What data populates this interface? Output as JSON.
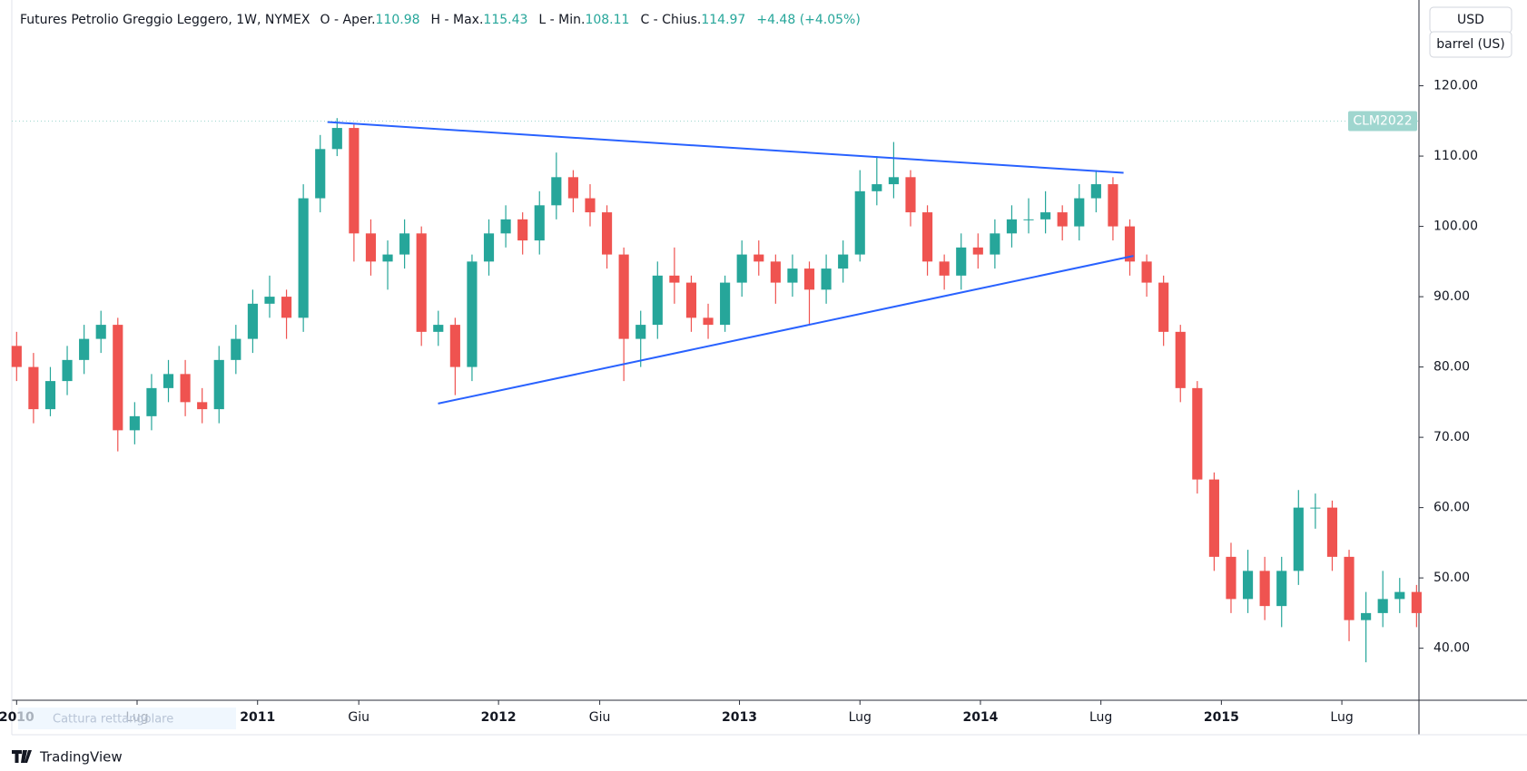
{
  "header": {
    "symbol": "Futures Petrolio Greggio Leggero, 1W, NYMEX",
    "open_label": "O - Aper.",
    "open": "110.98",
    "high_label": "H - Max.",
    "high": "115.43",
    "low_label": "L - Min.",
    "low": "108.11",
    "close_label": "C - Chius.",
    "close": "114.97",
    "change": "+4.48 (+4.05%)"
  },
  "currency": "USD",
  "unit": "barrel (US)",
  "overlay_hint": "Cattura rettangolare",
  "brand": "TradingView",
  "chart_data": {
    "type": "candlestick",
    "up_color": "#26a69a",
    "down_color": "#ef5350",
    "x": [
      2010.0,
      2010.07,
      2010.14,
      2010.21,
      2010.28,
      2010.35,
      2010.42,
      2010.49,
      2010.56,
      2010.63,
      2010.7,
      2010.77,
      2010.84,
      2010.91,
      2010.98,
      2011.05,
      2011.12,
      2011.19,
      2011.26,
      2011.33,
      2011.4,
      2011.47,
      2011.54,
      2011.61,
      2011.68,
      2011.75,
      2011.82,
      2011.89,
      2011.96,
      2012.03,
      2012.1,
      2012.17,
      2012.24,
      2012.31,
      2012.38,
      2012.45,
      2012.52,
      2012.59,
      2012.66,
      2012.73,
      2012.8,
      2012.87,
      2012.94,
      2013.01,
      2013.08,
      2013.15,
      2013.22,
      2013.29,
      2013.36,
      2013.43,
      2013.5,
      2013.57,
      2013.64,
      2013.71,
      2013.78,
      2013.85,
      2013.92,
      2013.99,
      2014.06,
      2014.13,
      2014.2,
      2014.27,
      2014.34,
      2014.41,
      2014.48,
      2014.55,
      2014.62,
      2014.69,
      2014.76,
      2014.83,
      2014.9,
      2014.97,
      2015.04,
      2015.11,
      2015.18,
      2015.25,
      2015.32,
      2015.39,
      2015.46,
      2015.53,
      2015.6,
      2015.67,
      2015.74,
      2015.81
    ],
    "open": [
      83,
      80,
      74,
      78,
      81,
      84,
      86,
      71,
      73,
      77,
      79,
      75,
      74,
      81,
      84,
      89,
      90,
      87,
      104,
      111,
      114,
      99,
      95,
      96,
      99,
      85,
      86,
      80,
      95,
      99,
      101,
      98,
      103,
      107,
      104,
      102,
      96,
      84,
      86,
      93,
      92,
      87,
      86,
      92,
      96,
      95,
      92,
      94,
      91,
      94,
      96,
      105,
      106,
      107,
      102,
      95,
      93,
      97,
      96,
      99,
      101,
      101,
      102,
      100,
      104,
      106,
      100,
      95,
      92,
      85,
      77,
      64,
      53,
      47,
      51,
      46,
      51,
      60,
      60,
      53,
      44,
      45,
      47,
      48
    ],
    "high": [
      85,
      82,
      80,
      83,
      86,
      88,
      87,
      75,
      79,
      81,
      81,
      77,
      83,
      86,
      91,
      93,
      91,
      106,
      113,
      115.4,
      114.5,
      101,
      98,
      101,
      100,
      88,
      87,
      96,
      101,
      103,
      102,
      105,
      110.5,
      108,
      106,
      103,
      97,
      88,
      95,
      97,
      93,
      89,
      93,
      98,
      98,
      96,
      96,
      95,
      96,
      98,
      108,
      110,
      112,
      108,
      103,
      96,
      99,
      99,
      101,
      103,
      104,
      105,
      103,
      106,
      108,
      107,
      101,
      96,
      93,
      86,
      78,
      65,
      55,
      54,
      53,
      53,
      62.5,
      62,
      61,
      54,
      48,
      51,
      50,
      49
    ],
    "low": [
      78,
      72,
      73,
      76,
      79,
      82,
      68,
      69,
      71,
      75,
      73,
      72,
      72,
      79,
      82,
      87,
      84,
      85,
      102,
      110,
      95,
      93,
      91,
      94,
      83,
      83,
      76,
      78,
      93,
      97,
      96,
      96,
      101,
      102,
      100,
      94,
      78,
      80,
      84,
      89,
      85,
      84,
      85,
      90,
      93,
      89,
      90,
      86,
      89,
      92,
      95,
      103,
      104,
      100,
      93,
      91,
      91,
      94,
      94,
      97,
      99,
      99,
      98,
      98,
      102,
      98,
      93,
      90,
      83,
      75,
      62,
      51,
      45,
      45,
      44,
      43,
      49,
      57,
      51,
      41,
      38,
      43,
      45,
      43
    ],
    "close": [
      80,
      74,
      78,
      81,
      84,
      86,
      71,
      73,
      77,
      79,
      75,
      74,
      81,
      84,
      89,
      90,
      87,
      104,
      111,
      114,
      99,
      95,
      96,
      99,
      85,
      86,
      80,
      95,
      99,
      101,
      98,
      103,
      107,
      104,
      102,
      96,
      84,
      86,
      93,
      92,
      87,
      86,
      92,
      96,
      95,
      92,
      94,
      91,
      94,
      96,
      105,
      106,
      107,
      102,
      95,
      93,
      97,
      96,
      99,
      101,
      101,
      102,
      100,
      104,
      106,
      100,
      95,
      92,
      85,
      77,
      64,
      53,
      47,
      51,
      46,
      51,
      60,
      60,
      53,
      44,
      45,
      47,
      48,
      45
    ],
    "xlim": [
      2009.98,
      2015.82
    ],
    "xticks": [
      {
        "value": 2010,
        "label": "2010"
      },
      {
        "value": 2010.5,
        "label": "Lug"
      },
      {
        "value": 2011,
        "label": "2011"
      },
      {
        "value": 2011.42,
        "label": "Giu"
      },
      {
        "value": 2012,
        "label": "2012"
      },
      {
        "value": 2012.42,
        "label": "Giu"
      },
      {
        "value": 2013,
        "label": "2013"
      },
      {
        "value": 2013.5,
        "label": "Lug"
      },
      {
        "value": 2014,
        "label": "2014"
      },
      {
        "value": 2014.5,
        "label": "Lug"
      },
      {
        "value": 2015,
        "label": "2015"
      },
      {
        "value": 2015.5,
        "label": "Lug"
      }
    ],
    "ylim": [
      32.6,
      132.2
    ],
    "yticks": [
      {
        "value": 40,
        "label": "40.00"
      },
      {
        "value": 50,
        "label": "50.00"
      },
      {
        "value": 60,
        "label": "60.00"
      },
      {
        "value": 70,
        "label": "70.00"
      },
      {
        "value": 80,
        "label": "80.00"
      },
      {
        "value": 90,
        "label": "90.00"
      },
      {
        "value": 100,
        "label": "100.00"
      },
      {
        "value": 110,
        "label": "110.00"
      },
      {
        "value": 120,
        "label": "120.00"
      }
    ],
    "last_price": {
      "value": 114.97,
      "label": "CLM2022"
    },
    "last_price_color": "#9fd6cf",
    "trendline_color": "#2962ff",
    "trendlines": [
      {
        "x": [
          2011.29,
          2014.594
        ],
        "y": [
          114.85,
          107.62
        ]
      },
      {
        "x": [
          2011.749,
          2014.635
        ],
        "y": [
          74.8,
          95.8
        ]
      }
    ]
  }
}
